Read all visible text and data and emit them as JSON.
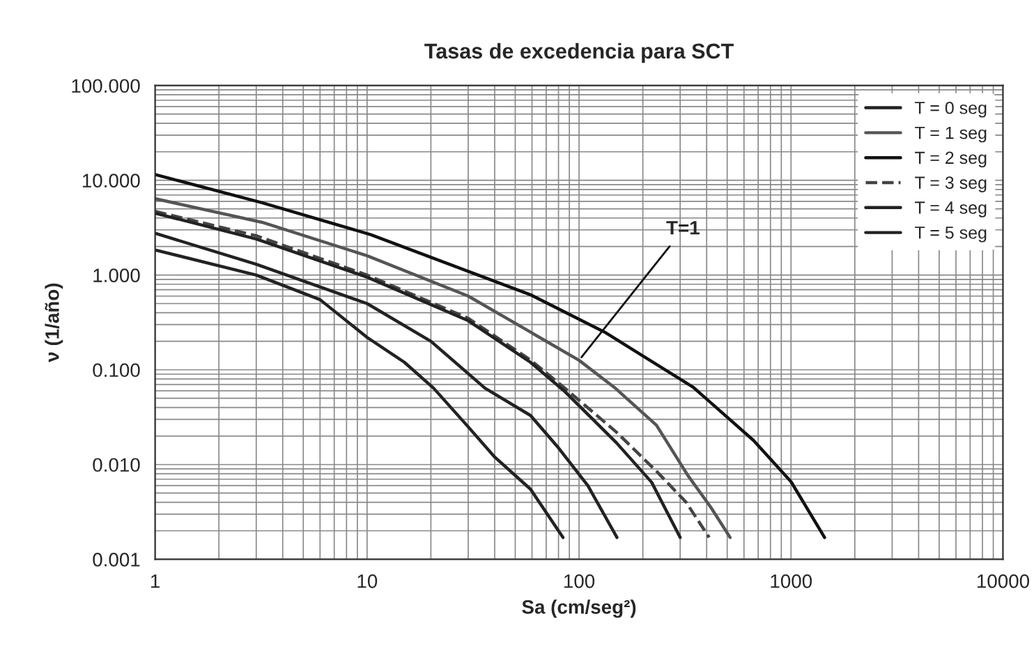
{
  "chart_data": {
    "type": "line",
    "title": "Tasas de excedencia para SCT",
    "xlabel": "Sa (cm/seg²)",
    "ylabel": "ν (1/año)",
    "log": "xy",
    "grid": true,
    "legend": "top right",
    "marker": "none",
    "xlim": [
      1,
      10000
    ],
    "xticks": [
      1,
      10,
      100,
      1000,
      10000
    ],
    "ylim": [
      0.001,
      100
    ],
    "yticks": [
      {
        "value": 0.001,
        "label": "0.001"
      },
      {
        "value": 0.01,
        "label": "0.010"
      },
      {
        "value": 0.1,
        "label": "0.100"
      },
      {
        "value": 1,
        "label": "1.000"
      },
      {
        "value": 10,
        "label": "10.000"
      },
      {
        "value": 100,
        "label": "100.000"
      }
    ],
    "annotations": [
      {
        "text": "T=1",
        "x": 100,
        "y": 0.126
      }
    ],
    "series": [
      {
        "name": "T = 0 seg",
        "color": "#222222",
        "line_style": "solid",
        "x": [
          1,
          3,
          6,
          10,
          15,
          20.6,
          30,
          40,
          59,
          84
        ],
        "values": [
          1.84,
          1.0,
          0.55,
          0.22,
          0.12,
          0.064,
          0.025,
          0.012,
          0.0055,
          0.0017
        ]
      },
      {
        "name": "T = 1 seg",
        "color": "#555555",
        "line_style": "solid",
        "x": [
          1,
          3.2,
          10,
          30,
          59,
          100,
          147,
          232,
          327,
          420,
          516
        ],
        "values": [
          6.4,
          3.6,
          1.6,
          0.6,
          0.25,
          0.126,
          0.065,
          0.026,
          0.0076,
          0.0035,
          0.0017
        ]
      },
      {
        "name": "T = 2 seg",
        "color": "#111111",
        "line_style": "solid",
        "x": [
          1,
          3.2,
          10.4,
          59,
          132,
          347,
          665,
          1000,
          1440
        ],
        "values": [
          11.5,
          5.8,
          2.67,
          0.62,
          0.25,
          0.065,
          0.018,
          0.0066,
          0.0017
        ]
      },
      {
        "name": "T = 3 seg",
        "color": "#444444",
        "line_style": "dashed",
        "x": [
          1,
          3,
          10,
          30,
          59,
          85,
          150,
          232,
          320,
          411
        ],
        "values": [
          4.7,
          2.6,
          1.0,
          0.35,
          0.127,
          0.065,
          0.022,
          0.0085,
          0.004,
          0.0017
        ]
      },
      {
        "name": "T = 4 seg",
        "color": "#222222",
        "line_style": "solid",
        "x": [
          1,
          3,
          10,
          30,
          59,
          85,
          150,
          220,
          300
        ],
        "values": [
          4.5,
          2.4,
          0.95,
          0.33,
          0.12,
          0.06,
          0.017,
          0.0065,
          0.0017
        ]
      },
      {
        "name": "T = 5 seg",
        "color": "#222222",
        "line_style": "solid",
        "x": [
          1,
          3,
          10,
          20,
          36,
          59,
          80,
          110,
          151
        ],
        "values": [
          2.76,
          1.3,
          0.5,
          0.2,
          0.064,
          0.033,
          0.015,
          0.006,
          0.0017
        ]
      }
    ]
  }
}
